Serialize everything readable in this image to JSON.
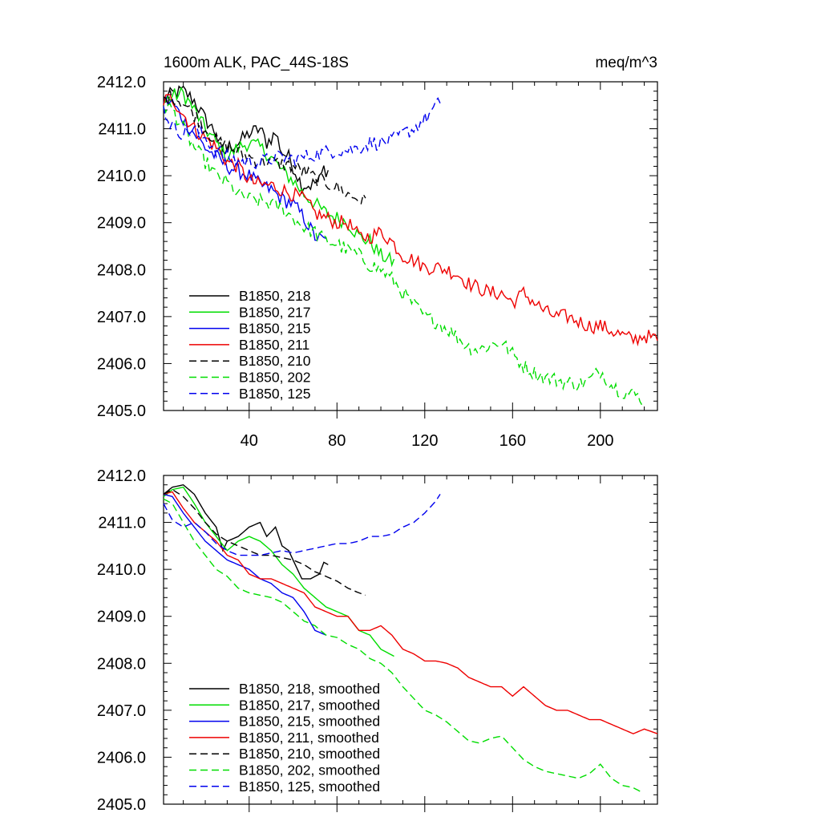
{
  "title_left": "1600m ALK, PAC_44S-18S",
  "title_right": "meq/m^3",
  "chart_data": [
    {
      "type": "line",
      "title": "1600m ALK, PAC_44S-18S",
      "units": "meq/m^3",
      "xlim": [
        1,
        226
      ],
      "ylim": [
        2405.0,
        2412.0
      ],
      "xticks": [
        40,
        80,
        120,
        160,
        200
      ],
      "xtick_labels": [
        "40",
        "80",
        "120",
        "160",
        "200"
      ],
      "yticks": [
        2405.0,
        2406.0,
        2407.0,
        2408.0,
        2409.0,
        2410.0,
        2411.0,
        2412.0
      ],
      "ytick_labels": [
        "2405.0",
        "2406.0",
        "2407.0",
        "2408.0",
        "2409.0",
        "2410.0",
        "2411.0",
        "2412.0"
      ],
      "legend_location": "lower-left",
      "series": [
        {
          "name": "B1850, 218",
          "color": "#000000",
          "dash": "solid",
          "x_end": 76,
          "points": [
            [
              1,
              2411.6
            ],
            [
              5,
              2411.75
            ],
            [
              10,
              2411.8
            ],
            [
              15,
              2411.6
            ],
            [
              20,
              2411.2
            ],
            [
              25,
              2410.9
            ],
            [
              28,
              2410.4
            ],
            [
              30,
              2410.6
            ],
            [
              35,
              2410.7
            ],
            [
              40,
              2410.9
            ],
            [
              45,
              2411.0
            ],
            [
              48,
              2410.7
            ],
            [
              52,
              2410.9
            ],
            [
              55,
              2410.5
            ],
            [
              58,
              2410.4
            ],
            [
              62,
              2410.0
            ],
            [
              64,
              2409.8
            ],
            [
              68,
              2409.8
            ],
            [
              72,
              2409.9
            ],
            [
              74,
              2410.15
            ],
            [
              76,
              2410.1
            ]
          ]
        },
        {
          "name": "B1850, 217",
          "color": "#00dd00",
          "dash": "solid",
          "x_end": 106,
          "points": [
            [
              1,
              2411.55
            ],
            [
              5,
              2411.7
            ],
            [
              10,
              2411.75
            ],
            [
              15,
              2411.4
            ],
            [
              20,
              2411.0
            ],
            [
              25,
              2410.7
            ],
            [
              30,
              2410.4
            ],
            [
              35,
              2410.6
            ],
            [
              40,
              2410.7
            ],
            [
              45,
              2410.6
            ],
            [
              50,
              2410.4
            ],
            [
              55,
              2410.1
            ],
            [
              60,
              2409.9
            ],
            [
              65,
              2409.6
            ],
            [
              70,
              2409.4
            ],
            [
              75,
              2409.2
            ],
            [
              80,
              2409.1
            ],
            [
              85,
              2409.0
            ],
            [
              90,
              2408.7
            ],
            [
              95,
              2408.6
            ],
            [
              100,
              2408.3
            ],
            [
              106,
              2408.15
            ]
          ]
        },
        {
          "name": "B1850, 215",
          "color": "#0000ee",
          "dash": "solid",
          "x_end": 75,
          "points": [
            [
              1,
              2411.6
            ],
            [
              5,
              2411.55
            ],
            [
              10,
              2411.2
            ],
            [
              15,
              2410.9
            ],
            [
              20,
              2410.6
            ],
            [
              25,
              2410.4
            ],
            [
              30,
              2410.2
            ],
            [
              35,
              2410.1
            ],
            [
              40,
              2410.0
            ],
            [
              45,
              2409.8
            ],
            [
              50,
              2409.7
            ],
            [
              55,
              2409.5
            ],
            [
              60,
              2409.4
            ],
            [
              65,
              2409.1
            ],
            [
              70,
              2408.7
            ],
            [
              75,
              2408.6
            ]
          ]
        },
        {
          "name": "B1850, 211",
          "color": "#ee0000",
          "dash": "solid",
          "x_end": 226,
          "points": [
            [
              1,
              2411.6
            ],
            [
              5,
              2411.65
            ],
            [
              10,
              2411.3
            ],
            [
              15,
              2411.0
            ],
            [
              20,
              2410.8
            ],
            [
              25,
              2410.6
            ],
            [
              30,
              2410.3
            ],
            [
              35,
              2410.2
            ],
            [
              40,
              2409.9
            ],
            [
              45,
              2409.8
            ],
            [
              50,
              2409.8
            ],
            [
              55,
              2409.7
            ],
            [
              60,
              2409.6
            ],
            [
              65,
              2409.5
            ],
            [
              70,
              2409.2
            ],
            [
              75,
              2409.1
            ],
            [
              80,
              2409.0
            ],
            [
              85,
              2409.0
            ],
            [
              90,
              2408.7
            ],
            [
              95,
              2408.7
            ],
            [
              100,
              2408.8
            ],
            [
              105,
              2408.6
            ],
            [
              110,
              2408.3
            ],
            [
              115,
              2408.2
            ],
            [
              120,
              2408.05
            ],
            [
              125,
              2408.05
            ],
            [
              130,
              2408.0
            ],
            [
              135,
              2407.9
            ],
            [
              140,
              2407.7
            ],
            [
              145,
              2407.6
            ],
            [
              150,
              2407.5
            ],
            [
              155,
              2407.5
            ],
            [
              160,
              2407.3
            ],
            [
              165,
              2407.5
            ],
            [
              170,
              2407.3
            ],
            [
              175,
              2407.1
            ],
            [
              180,
              2407.0
            ],
            [
              185,
              2407.0
            ],
            [
              190,
              2406.9
            ],
            [
              195,
              2406.8
            ],
            [
              200,
              2406.8
            ],
            [
              205,
              2406.7
            ],
            [
              210,
              2406.6
            ],
            [
              215,
              2406.5
            ],
            [
              220,
              2406.6
            ],
            [
              226,
              2406.5
            ]
          ]
        },
        {
          "name": "B1850, 210",
          "color": "#000000",
          "dash": "dashed",
          "x_end": 93,
          "points": [
            [
              1,
              2411.6
            ],
            [
              5,
              2411.7
            ],
            [
              10,
              2411.55
            ],
            [
              15,
              2411.3
            ],
            [
              20,
              2411.0
            ],
            [
              25,
              2410.75
            ],
            [
              30,
              2410.6
            ],
            [
              35,
              2410.5
            ],
            [
              40,
              2410.4
            ],
            [
              45,
              2410.3
            ],
            [
              50,
              2410.3
            ],
            [
              55,
              2410.25
            ],
            [
              60,
              2410.2
            ],
            [
              65,
              2410.1
            ],
            [
              70,
              2409.95
            ],
            [
              75,
              2409.85
            ],
            [
              80,
              2409.75
            ],
            [
              85,
              2409.6
            ],
            [
              90,
              2409.5
            ],
            [
              93,
              2409.45
            ]
          ]
        },
        {
          "name": "B1850, 202",
          "color": "#00dd00",
          "dash": "dashed",
          "x_end": 219,
          "points": [
            [
              1,
              2411.5
            ],
            [
              5,
              2411.4
            ],
            [
              10,
              2411.0
            ],
            [
              15,
              2410.6
            ],
            [
              20,
              2410.3
            ],
            [
              25,
              2410.0
            ],
            [
              30,
              2409.85
            ],
            [
              35,
              2409.6
            ],
            [
              40,
              2409.5
            ],
            [
              45,
              2409.45
            ],
            [
              50,
              2409.4
            ],
            [
              55,
              2409.3
            ],
            [
              60,
              2409.1
            ],
            [
              65,
              2408.9
            ],
            [
              70,
              2408.8
            ],
            [
              75,
              2408.6
            ],
            [
              80,
              2408.55
            ],
            [
              85,
              2408.4
            ],
            [
              90,
              2408.3
            ],
            [
              95,
              2408.1
            ],
            [
              100,
              2408.0
            ],
            [
              105,
              2407.8
            ],
            [
              110,
              2407.5
            ],
            [
              115,
              2407.25
            ],
            [
              120,
              2407.0
            ],
            [
              125,
              2406.9
            ],
            [
              130,
              2406.75
            ],
            [
              135,
              2406.55
            ],
            [
              140,
              2406.35
            ],
            [
              145,
              2406.3
            ],
            [
              150,
              2406.4
            ],
            [
              155,
              2406.45
            ],
            [
              160,
              2406.2
            ],
            [
              165,
              2405.95
            ],
            [
              170,
              2405.8
            ],
            [
              175,
              2405.7
            ],
            [
              180,
              2405.65
            ],
            [
              185,
              2405.6
            ],
            [
              190,
              2405.55
            ],
            [
              195,
              2405.65
            ],
            [
              200,
              2405.85
            ],
            [
              205,
              2405.55
            ],
            [
              210,
              2405.4
            ],
            [
              215,
              2405.35
            ],
            [
              219,
              2405.25
            ]
          ]
        },
        {
          "name": "B1850, 125",
          "color": "#0000ee",
          "dash": "dashed",
          "x_end": 127,
          "points": [
            [
              1,
              2411.4
            ],
            [
              5,
              2411.05
            ],
            [
              10,
              2410.9
            ],
            [
              15,
              2411.0
            ],
            [
              20,
              2410.8
            ],
            [
              25,
              2410.55
            ],
            [
              30,
              2410.4
            ],
            [
              35,
              2410.3
            ],
            [
              40,
              2410.3
            ],
            [
              45,
              2410.3
            ],
            [
              50,
              2410.35
            ],
            [
              55,
              2410.4
            ],
            [
              60,
              2410.35
            ],
            [
              65,
              2410.4
            ],
            [
              70,
              2410.45
            ],
            [
              75,
              2410.5
            ],
            [
              80,
              2410.55
            ],
            [
              85,
              2410.55
            ],
            [
              90,
              2410.6
            ],
            [
              95,
              2410.7
            ],
            [
              100,
              2410.7
            ],
            [
              105,
              2410.75
            ],
            [
              110,
              2410.9
            ],
            [
              115,
              2411.0
            ],
            [
              120,
              2411.2
            ],
            [
              125,
              2411.45
            ],
            [
              127,
              2411.6
            ]
          ]
        }
      ]
    },
    {
      "type": "line",
      "xlim": [
        1,
        226
      ],
      "ylim": [
        2405.0,
        2412.0
      ],
      "yticks": [
        2405.0,
        2406.0,
        2407.0,
        2408.0,
        2409.0,
        2410.0,
        2411.0,
        2412.0
      ],
      "ytick_labels": [
        "2405.0",
        "2406.0",
        "2407.0",
        "2408.0",
        "2409.0",
        "2410.0",
        "2411.0",
        "2412.0"
      ],
      "xticks": [
        40,
        80,
        120,
        160,
        200
      ],
      "xtick_labels": [],
      "legend_location": "lower-left",
      "series": [
        {
          "name": "B1850, 218, smoothed",
          "color": "#000000",
          "dash": "solid",
          "smoothed": true
        },
        {
          "name": "B1850, 217, smoothed",
          "color": "#00dd00",
          "dash": "solid",
          "smoothed": true
        },
        {
          "name": "B1850, 215, smoothed",
          "color": "#0000ee",
          "dash": "solid",
          "smoothed": true
        },
        {
          "name": "B1850, 211, smoothed",
          "color": "#ee0000",
          "dash": "solid",
          "smoothed": true
        },
        {
          "name": "B1850, 210, smoothed",
          "color": "#000000",
          "dash": "dashed",
          "smoothed": true
        },
        {
          "name": "B1850, 202, smoothed",
          "color": "#00dd00",
          "dash": "dashed",
          "smoothed": true
        },
        {
          "name": "B1850, 125, smoothed",
          "color": "#0000ee",
          "dash": "dashed",
          "smoothed": true
        }
      ]
    }
  ]
}
